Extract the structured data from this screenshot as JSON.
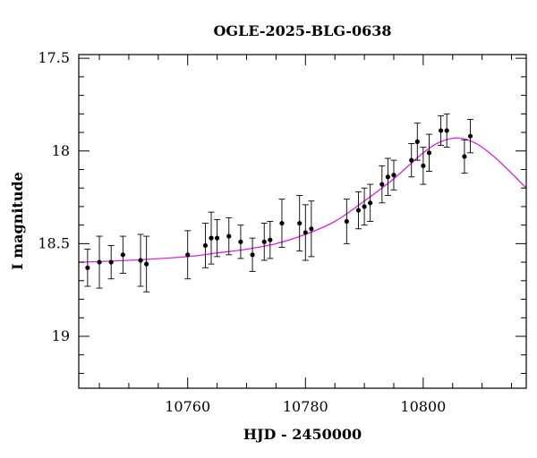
{
  "chart_data": {
    "type": "scatter",
    "title": "OGLE-2025-BLG-0638",
    "xlabel": "HJD - 2450000",
    "ylabel": "I magnitude",
    "xlim": [
      10741.5,
      10817.5
    ],
    "ylim": [
      19.28,
      17.48
    ],
    "y_inverted": true,
    "x_major_ticks": [
      10760,
      10780,
      10800
    ],
    "x_tick_labels": [
      "10760",
      "10780",
      "10800"
    ],
    "x_minor_step": 5,
    "y_major_ticks": [
      17.5,
      18,
      18.5,
      19
    ],
    "y_tick_labels": [
      "17.5",
      "18",
      "18.5",
      "19"
    ],
    "y_minor_step": 0.1,
    "grid": false,
    "legend": "none",
    "colors": {
      "points": "#000000",
      "model": "#e020e0",
      "axes": "#000000"
    },
    "series": [
      {
        "kind": "points_with_errorbars",
        "points": [
          {
            "x": 10743.0,
            "y": 18.63,
            "err": 0.1
          },
          {
            "x": 10745.0,
            "y": 18.6,
            "err": 0.14
          },
          {
            "x": 10747.0,
            "y": 18.6,
            "err": 0.09
          },
          {
            "x": 10749.0,
            "y": 18.56,
            "err": 0.1
          },
          {
            "x": 10752.0,
            "y": 18.59,
            "err": 0.14
          },
          {
            "x": 10753.0,
            "y": 18.61,
            "err": 0.15
          },
          {
            "x": 10760.0,
            "y": 18.56,
            "err": 0.13
          },
          {
            "x": 10763.0,
            "y": 18.51,
            "err": 0.12
          },
          {
            "x": 10764.0,
            "y": 18.47,
            "err": 0.14
          },
          {
            "x": 10765.0,
            "y": 18.47,
            "err": 0.1
          },
          {
            "x": 10767.0,
            "y": 18.46,
            "err": 0.1
          },
          {
            "x": 10769.0,
            "y": 18.49,
            "err": 0.09
          },
          {
            "x": 10771.0,
            "y": 18.56,
            "err": 0.09
          },
          {
            "x": 10773.0,
            "y": 18.49,
            "err": 0.1
          },
          {
            "x": 10774.0,
            "y": 18.48,
            "err": 0.1
          },
          {
            "x": 10776.0,
            "y": 18.39,
            "err": 0.13
          },
          {
            "x": 10779.0,
            "y": 18.39,
            "err": 0.15
          },
          {
            "x": 10780.0,
            "y": 18.44,
            "err": 0.15
          },
          {
            "x": 10781.0,
            "y": 18.42,
            "err": 0.15
          },
          {
            "x": 10787.0,
            "y": 18.38,
            "err": 0.12
          },
          {
            "x": 10789.0,
            "y": 18.32,
            "err": 0.1
          },
          {
            "x": 10790.0,
            "y": 18.3,
            "err": 0.1
          },
          {
            "x": 10791.0,
            "y": 18.28,
            "err": 0.1
          },
          {
            "x": 10793.0,
            "y": 18.18,
            "err": 0.1
          },
          {
            "x": 10794.0,
            "y": 18.14,
            "err": 0.1
          },
          {
            "x": 10795.0,
            "y": 18.13,
            "err": 0.08
          },
          {
            "x": 10798.0,
            "y": 18.05,
            "err": 0.09
          },
          {
            "x": 10799.0,
            "y": 17.95,
            "err": 0.1
          },
          {
            "x": 10800.0,
            "y": 18.08,
            "err": 0.1
          },
          {
            "x": 10801.0,
            "y": 18.01,
            "err": 0.1
          },
          {
            "x": 10803.0,
            "y": 17.89,
            "err": 0.08
          },
          {
            "x": 10804.0,
            "y": 17.89,
            "err": 0.09
          },
          {
            "x": 10807.0,
            "y": 18.03,
            "err": 0.09
          },
          {
            "x": 10808.0,
            "y": 17.92,
            "err": 0.09
          }
        ]
      },
      {
        "kind": "model_curve",
        "x": [
          10741.5,
          10750,
          10760,
          10765,
          10770,
          10775,
          10780,
          10785,
          10790,
          10795,
          10800,
          10803,
          10806,
          10809,
          10812,
          10815,
          10817.5
        ],
        "y": [
          18.6,
          18.59,
          18.57,
          18.55,
          18.53,
          18.5,
          18.45,
          18.38,
          18.27,
          18.15,
          18.01,
          17.95,
          17.93,
          17.96,
          18.03,
          18.12,
          18.2
        ]
      }
    ]
  }
}
